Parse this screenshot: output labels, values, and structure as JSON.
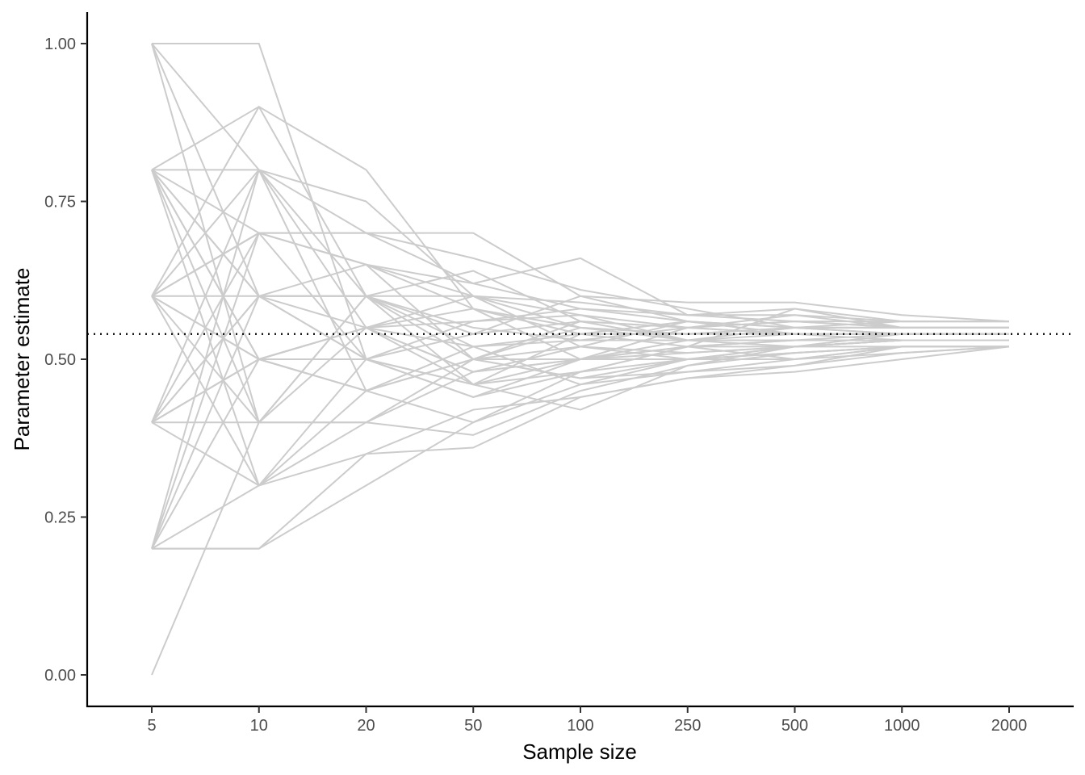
{
  "chart_data": {
    "type": "line",
    "xlabel": "Sample size",
    "ylabel": "Parameter estimate",
    "x_categories": [
      "5",
      "10",
      "20",
      "50",
      "100",
      "250",
      "500",
      "1000",
      "2000"
    ],
    "y_ticks": [
      "0.00",
      "0.25",
      "0.50",
      "0.75",
      "1.00"
    ],
    "ylim": [
      -0.05,
      1.05
    ],
    "reference_line": {
      "y": 0.54,
      "style": "dotted"
    },
    "grid": false,
    "line_color": "#cccccc",
    "reference_color": "#000000",
    "series": [
      {
        "values": [
          1.0,
          1.0,
          0.5,
          0.46,
          0.54,
          0.52,
          0.53,
          0.54,
          0.54
        ]
      },
      {
        "values": [
          1.0,
          0.8,
          0.45,
          0.5,
          0.55,
          0.54,
          0.55,
          0.55,
          0.55
        ]
      },
      {
        "values": [
          1.0,
          0.6,
          0.55,
          0.6,
          0.52,
          0.56,
          0.54,
          0.53,
          0.53
        ]
      },
      {
        "values": [
          1.0,
          0.4,
          0.6,
          0.54,
          0.56,
          0.53,
          0.52,
          0.54,
          0.54
        ]
      },
      {
        "values": [
          0.8,
          0.9,
          0.8,
          0.58,
          0.5,
          0.55,
          0.57,
          0.55,
          0.55
        ]
      },
      {
        "values": [
          0.8,
          0.8,
          0.7,
          0.66,
          0.61,
          0.58,
          0.55,
          0.54,
          0.54
        ]
      },
      {
        "values": [
          0.8,
          0.7,
          0.65,
          0.62,
          0.66,
          0.57,
          0.56,
          0.55,
          0.55
        ]
      },
      {
        "values": [
          0.8,
          0.6,
          0.5,
          0.44,
          0.48,
          0.5,
          0.52,
          0.53,
          0.53
        ]
      },
      {
        "values": [
          0.8,
          0.5,
          0.45,
          0.4,
          0.46,
          0.5,
          0.51,
          0.52,
          0.52
        ]
      },
      {
        "values": [
          0.8,
          0.4,
          0.55,
          0.56,
          0.57,
          0.53,
          0.55,
          0.56,
          0.56
        ]
      },
      {
        "values": [
          0.8,
          0.3,
          0.4,
          0.48,
          0.52,
          0.51,
          0.52,
          0.53,
          0.53
        ]
      },
      {
        "values": [
          0.6,
          0.8,
          0.75,
          0.6,
          0.59,
          0.57,
          0.58,
          0.56,
          0.56
        ]
      },
      {
        "values": [
          0.6,
          0.7,
          0.7,
          0.7,
          0.6,
          0.56,
          0.55,
          0.55,
          0.55
        ]
      },
      {
        "values": [
          0.6,
          0.6,
          0.6,
          0.55,
          0.53,
          0.55,
          0.54,
          0.54,
          0.54
        ]
      },
      {
        "values": [
          0.6,
          0.5,
          0.55,
          0.48,
          0.5,
          0.52,
          0.53,
          0.53,
          0.53
        ]
      },
      {
        "values": [
          0.6,
          0.4,
          0.4,
          0.5,
          0.47,
          0.48,
          0.5,
          0.52,
          0.52
        ]
      },
      {
        "values": [
          0.6,
          0.3,
          0.35,
          0.42,
          0.44,
          0.47,
          0.49,
          0.52,
          0.52
        ]
      },
      {
        "values": [
          0.6,
          0.9,
          0.6,
          0.64,
          0.56,
          0.55,
          0.56,
          0.55,
          0.55
        ]
      },
      {
        "values": [
          0.4,
          0.7,
          0.7,
          0.62,
          0.58,
          0.56,
          0.54,
          0.54,
          0.54
        ]
      },
      {
        "values": [
          0.4,
          0.6,
          0.65,
          0.58,
          0.55,
          0.54,
          0.55,
          0.55,
          0.55
        ]
      },
      {
        "values": [
          0.4,
          0.5,
          0.45,
          0.52,
          0.53,
          0.53,
          0.53,
          0.53,
          0.53
        ]
      },
      {
        "values": [
          0.4,
          0.4,
          0.4,
          0.38,
          0.45,
          0.49,
          0.51,
          0.52,
          0.52
        ]
      },
      {
        "values": [
          0.4,
          0.3,
          0.5,
          0.44,
          0.5,
          0.5,
          0.51,
          0.52,
          0.52
        ]
      },
      {
        "values": [
          0.4,
          0.8,
          0.55,
          0.46,
          0.42,
          0.49,
          0.52,
          0.53,
          0.53
        ]
      },
      {
        "values": [
          0.2,
          0.2,
          0.3,
          0.4,
          0.48,
          0.52,
          0.5,
          0.51,
          0.52
        ]
      },
      {
        "values": [
          0.2,
          0.3,
          0.45,
          0.5,
          0.56,
          0.55,
          0.56,
          0.56,
          0.56
        ]
      },
      {
        "values": [
          0.2,
          0.5,
          0.55,
          0.52,
          0.54,
          0.54,
          0.54,
          0.54,
          0.54
        ]
      },
      {
        "values": [
          0.2,
          0.6,
          0.6,
          0.6,
          0.55,
          0.53,
          0.53,
          0.53,
          0.53
        ]
      },
      {
        "values": [
          0.2,
          0.7,
          0.65,
          0.5,
          0.47,
          0.5,
          0.5,
          0.52,
          0.52
        ]
      },
      {
        "values": [
          0.2,
          0.2,
          0.35,
          0.36,
          0.44,
          0.47,
          0.48,
          0.5,
          0.52
        ]
      },
      {
        "values": [
          0.0,
          0.4,
          0.6,
          0.5,
          0.5,
          0.52,
          0.52,
          0.53,
          0.53
        ]
      },
      {
        "values": [
          0.2,
          0.8,
          0.6,
          0.46,
          0.48,
          0.52,
          0.58,
          0.55,
          0.55
        ]
      },
      {
        "values": [
          0.6,
          0.7,
          0.5,
          0.54,
          0.6,
          0.59,
          0.59,
          0.57,
          0.56
        ]
      },
      {
        "values": [
          0.4,
          0.6,
          0.6,
          0.52,
          0.46,
          0.48,
          0.49,
          0.51,
          0.52
        ]
      },
      {
        "values": [
          0.8,
          0.5,
          0.55,
          0.58,
          0.54,
          0.56,
          0.55,
          0.54,
          0.54
        ]
      },
      {
        "values": [
          0.6,
          0.5,
          0.45,
          0.5,
          0.52,
          0.5,
          0.52,
          0.53,
          0.53
        ]
      },
      {
        "values": [
          0.8,
          0.6,
          0.5,
          0.56,
          0.58,
          0.57,
          0.57,
          0.56,
          0.56
        ]
      },
      {
        "values": [
          0.4,
          0.5,
          0.55,
          0.48,
          0.5,
          0.51,
          0.52,
          0.52,
          0.52
        ]
      },
      {
        "values": [
          0.6,
          0.7,
          0.65,
          0.6,
          0.57,
          0.55,
          0.54,
          0.54,
          0.54
        ]
      },
      {
        "values": [
          0.4,
          0.5,
          0.5,
          0.46,
          0.5,
          0.53,
          0.54,
          0.54,
          0.54
        ]
      }
    ]
  }
}
